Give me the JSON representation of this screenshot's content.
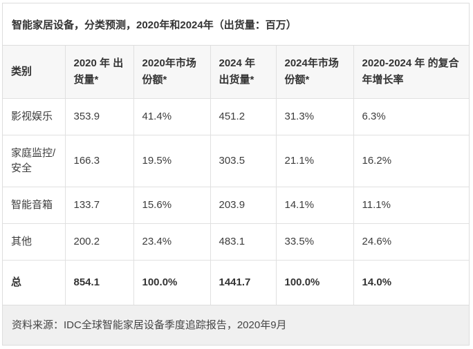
{
  "title": "智能家居设备，分类预测，2020年和2024年（出货量：百万）",
  "table": {
    "headers": [
      "类别",
      "2020 年 出货量*",
      "2020年市场份额*",
      "2024 年 出货量*",
      "2024年市场份额*",
      "2020-2024 年 的复合年增长率"
    ],
    "rows": [
      [
        "影视娱乐",
        "353.9",
        "41.4%",
        "451.2",
        "31.3%",
        "6.3%"
      ],
      [
        "家庭监控/安全",
        "166.3",
        "19.5%",
        "303.5",
        "21.1%",
        "16.2%"
      ],
      [
        "智能音箱",
        "133.7",
        "15.6%",
        "203.9",
        "14.1%",
        "11.1%"
      ],
      [
        "其他",
        "200.2",
        "23.4%",
        "483.1",
        "33.5%",
        "24.6%"
      ]
    ],
    "total": [
      "总",
      "854.1",
      "100.0%",
      "1441.7",
      "100.0%",
      "14.0%"
    ]
  },
  "footer": {
    "source": "资料来源：IDC全球智能家居设备季度追踪报告，2020年9月"
  },
  "colors": {
    "border": "#dddddd",
    "header_background": "#f7f7f7",
    "footer_background": "#f0f0f0",
    "text": "#333333"
  },
  "chart_data": {
    "type": "table",
    "title": "智能家居设备，分类预测，2020年和2024年（出货量：百万）",
    "unit": "百万（出货量）",
    "categories": [
      "影视娱乐",
      "家庭监控/安全",
      "智能音箱",
      "其他",
      "总"
    ],
    "series": [
      {
        "name": "2020 年 出货量*",
        "values": [
          353.9,
          166.3,
          133.7,
          200.2,
          854.1
        ]
      },
      {
        "name": "2020年市场份额*",
        "values": [
          "41.4%",
          "19.5%",
          "15.6%",
          "23.4%",
          "100.0%"
        ]
      },
      {
        "name": "2024 年 出货量*",
        "values": [
          451.2,
          303.5,
          203.9,
          483.1,
          1441.7
        ]
      },
      {
        "name": "2024年市场份额*",
        "values": [
          "31.3%",
          "21.1%",
          "14.1%",
          "33.5%",
          "100.0%"
        ]
      },
      {
        "name": "2020-2024 年 的复合年增长率",
        "values": [
          "6.3%",
          "16.2%",
          "11.1%",
          "24.6%",
          "14.0%"
        ]
      }
    ],
    "source": "资料来源：IDC全球智能家居设备季度追踪报告，2020年9月"
  }
}
